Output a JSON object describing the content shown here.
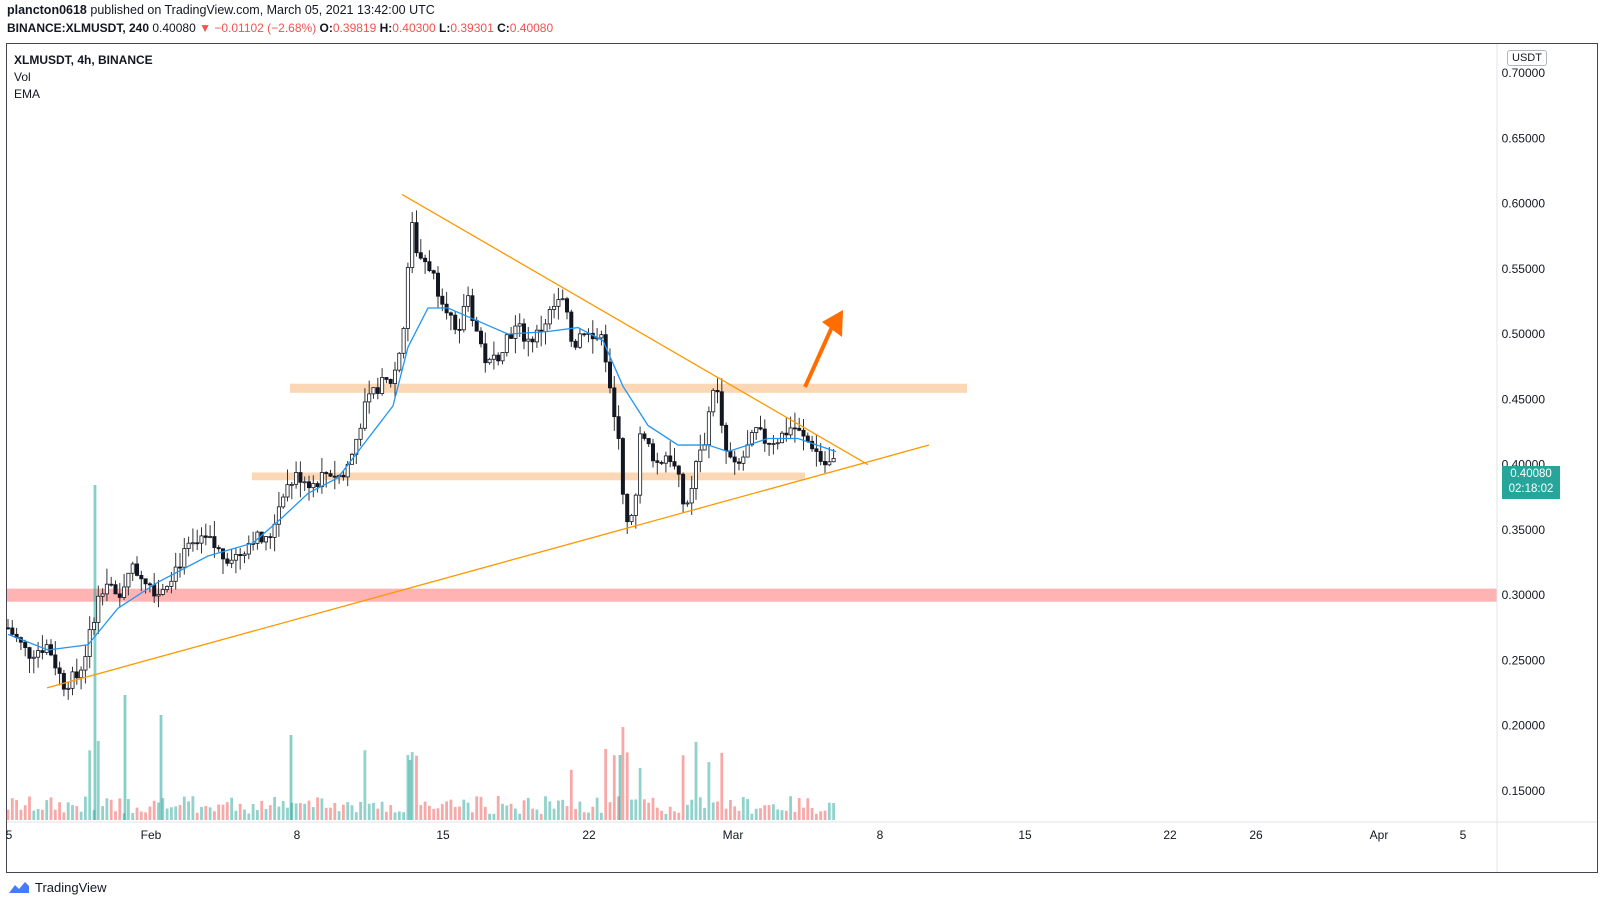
{
  "header": {
    "author": "plancton0618",
    "published_text": "published on TradingView.com, March 05, 2021 13:42:00 UTC",
    "symbol_full": "BINANCE:XLMUSDT, 240",
    "last": "0.40080",
    "change": "−0.01102 (−2.68%)",
    "o_label": "O:",
    "o": "0.39819",
    "h_label": "H:",
    "h": "0.40300",
    "l_label": "L:",
    "l": "0.39301",
    "c_label": "C:",
    "c": "0.40080"
  },
  "legend": {
    "symbol": "XLMUSDT, 4h, BINANCE",
    "vol": "Vol",
    "ema": "EMA"
  },
  "currency_label": "USDT",
  "price_tag": {
    "price": "0.40080",
    "countdown": "02:18:02"
  },
  "brand": "TradingView",
  "colors": {
    "up": "#26a69a",
    "down": "#ef5350",
    "ema": "#2196f3",
    "trend": "#ff9800",
    "zone": "#fcd7b5",
    "support": "#ffb3b3"
  },
  "chart_data": {
    "type": "candlestick",
    "y_axis_ticks": [
      "0.70000",
      "0.65000",
      "0.60000",
      "0.55000",
      "0.50000",
      "0.45000",
      "0.40000",
      "0.35000",
      "0.30000",
      "0.25000",
      "0.20000",
      "0.15000"
    ],
    "x_axis_ticks": [
      "5",
      "Feb",
      "8",
      "15",
      "22",
      "Mar",
      "8",
      "15",
      "22",
      "26",
      "Apr",
      "5"
    ],
    "ylim": [
      0.13,
      0.72
    ],
    "price_path": [
      [
        0,
        0.275
      ],
      [
        20,
        0.255
      ],
      [
        40,
        0.262
      ],
      [
        55,
        0.232
      ],
      [
        70,
        0.238
      ],
      [
        80,
        0.262
      ],
      [
        90,
        0.3
      ],
      [
        100,
        0.315
      ],
      [
        110,
        0.29
      ],
      [
        120,
        0.322
      ],
      [
        135,
        0.315
      ],
      [
        150,
        0.302
      ],
      [
        165,
        0.318
      ],
      [
        180,
        0.335
      ],
      [
        200,
        0.342
      ],
      [
        215,
        0.33
      ],
      [
        230,
        0.33
      ],
      [
        245,
        0.345
      ],
      [
        260,
        0.34
      ],
      [
        275,
        0.38
      ],
      [
        290,
        0.392
      ],
      [
        305,
        0.385
      ],
      [
        320,
        0.395
      ],
      [
        335,
        0.39
      ],
      [
        345,
        0.41
      ],
      [
        355,
        0.44
      ],
      [
        370,
        0.46
      ],
      [
        385,
        0.465
      ],
      [
        395,
        0.5
      ],
      [
        403,
        0.585
      ],
      [
        410,
        0.56
      ],
      [
        420,
        0.555
      ],
      [
        430,
        0.535
      ],
      [
        440,
        0.52
      ],
      [
        450,
        0.49
      ],
      [
        458,
        0.535
      ],
      [
        470,
        0.498
      ],
      [
        480,
        0.475
      ],
      [
        490,
        0.485
      ],
      [
        500,
        0.5
      ],
      [
        510,
        0.505
      ],
      [
        520,
        0.495
      ],
      [
        530,
        0.5
      ],
      [
        545,
        0.52
      ],
      [
        555,
        0.525
      ],
      [
        565,
        0.49
      ],
      [
        575,
        0.505
      ],
      [
        585,
        0.495
      ],
      [
        595,
        0.5
      ],
      [
        603,
        0.45
      ],
      [
        610,
        0.42
      ],
      [
        618,
        0.36
      ],
      [
        625,
        0.355
      ],
      [
        632,
        0.42
      ],
      [
        640,
        0.415
      ],
      [
        650,
        0.4
      ],
      [
        660,
        0.41
      ],
      [
        670,
        0.39
      ],
      [
        678,
        0.36
      ],
      [
        688,
        0.4
      ],
      [
        697,
        0.42
      ],
      [
        706,
        0.465
      ],
      [
        712,
        0.445
      ],
      [
        718,
        0.41
      ],
      [
        728,
        0.395
      ],
      [
        738,
        0.41
      ],
      [
        748,
        0.425
      ],
      [
        758,
        0.418
      ],
      [
        770,
        0.42
      ],
      [
        785,
        0.43
      ],
      [
        795,
        0.42
      ],
      [
        805,
        0.415
      ],
      [
        815,
        0.4
      ],
      [
        828,
        0.401
      ]
    ],
    "ema_path": [
      [
        0,
        0.27
      ],
      [
        40,
        0.258
      ],
      [
        80,
        0.262
      ],
      [
        110,
        0.29
      ],
      [
        150,
        0.31
      ],
      [
        200,
        0.33
      ],
      [
        245,
        0.34
      ],
      [
        275,
        0.36
      ],
      [
        300,
        0.378
      ],
      [
        330,
        0.39
      ],
      [
        360,
        0.42
      ],
      [
        385,
        0.445
      ],
      [
        400,
        0.49
      ],
      [
        420,
        0.52
      ],
      [
        440,
        0.52
      ],
      [
        470,
        0.51
      ],
      [
        500,
        0.5
      ],
      [
        540,
        0.502
      ],
      [
        570,
        0.505
      ],
      [
        595,
        0.495
      ],
      [
        615,
        0.46
      ],
      [
        640,
        0.43
      ],
      [
        670,
        0.415
      ],
      [
        700,
        0.415
      ],
      [
        720,
        0.41
      ],
      [
        760,
        0.42
      ],
      [
        790,
        0.42
      ],
      [
        828,
        0.41
      ]
    ],
    "drawings": {
      "resistance_zone": [
        0.455,
        0.462
      ],
      "support_zone": [
        0.388,
        0.394
      ],
      "key_support_zone": [
        0.295,
        0.305
      ],
      "descending_trendline": [
        [
          402,
          0.607
        ],
        [
          868,
          0.4
        ]
      ],
      "ascending_trendline": [
        [
          47,
          0.229
        ],
        [
          929,
          0.415
        ]
      ]
    }
  }
}
